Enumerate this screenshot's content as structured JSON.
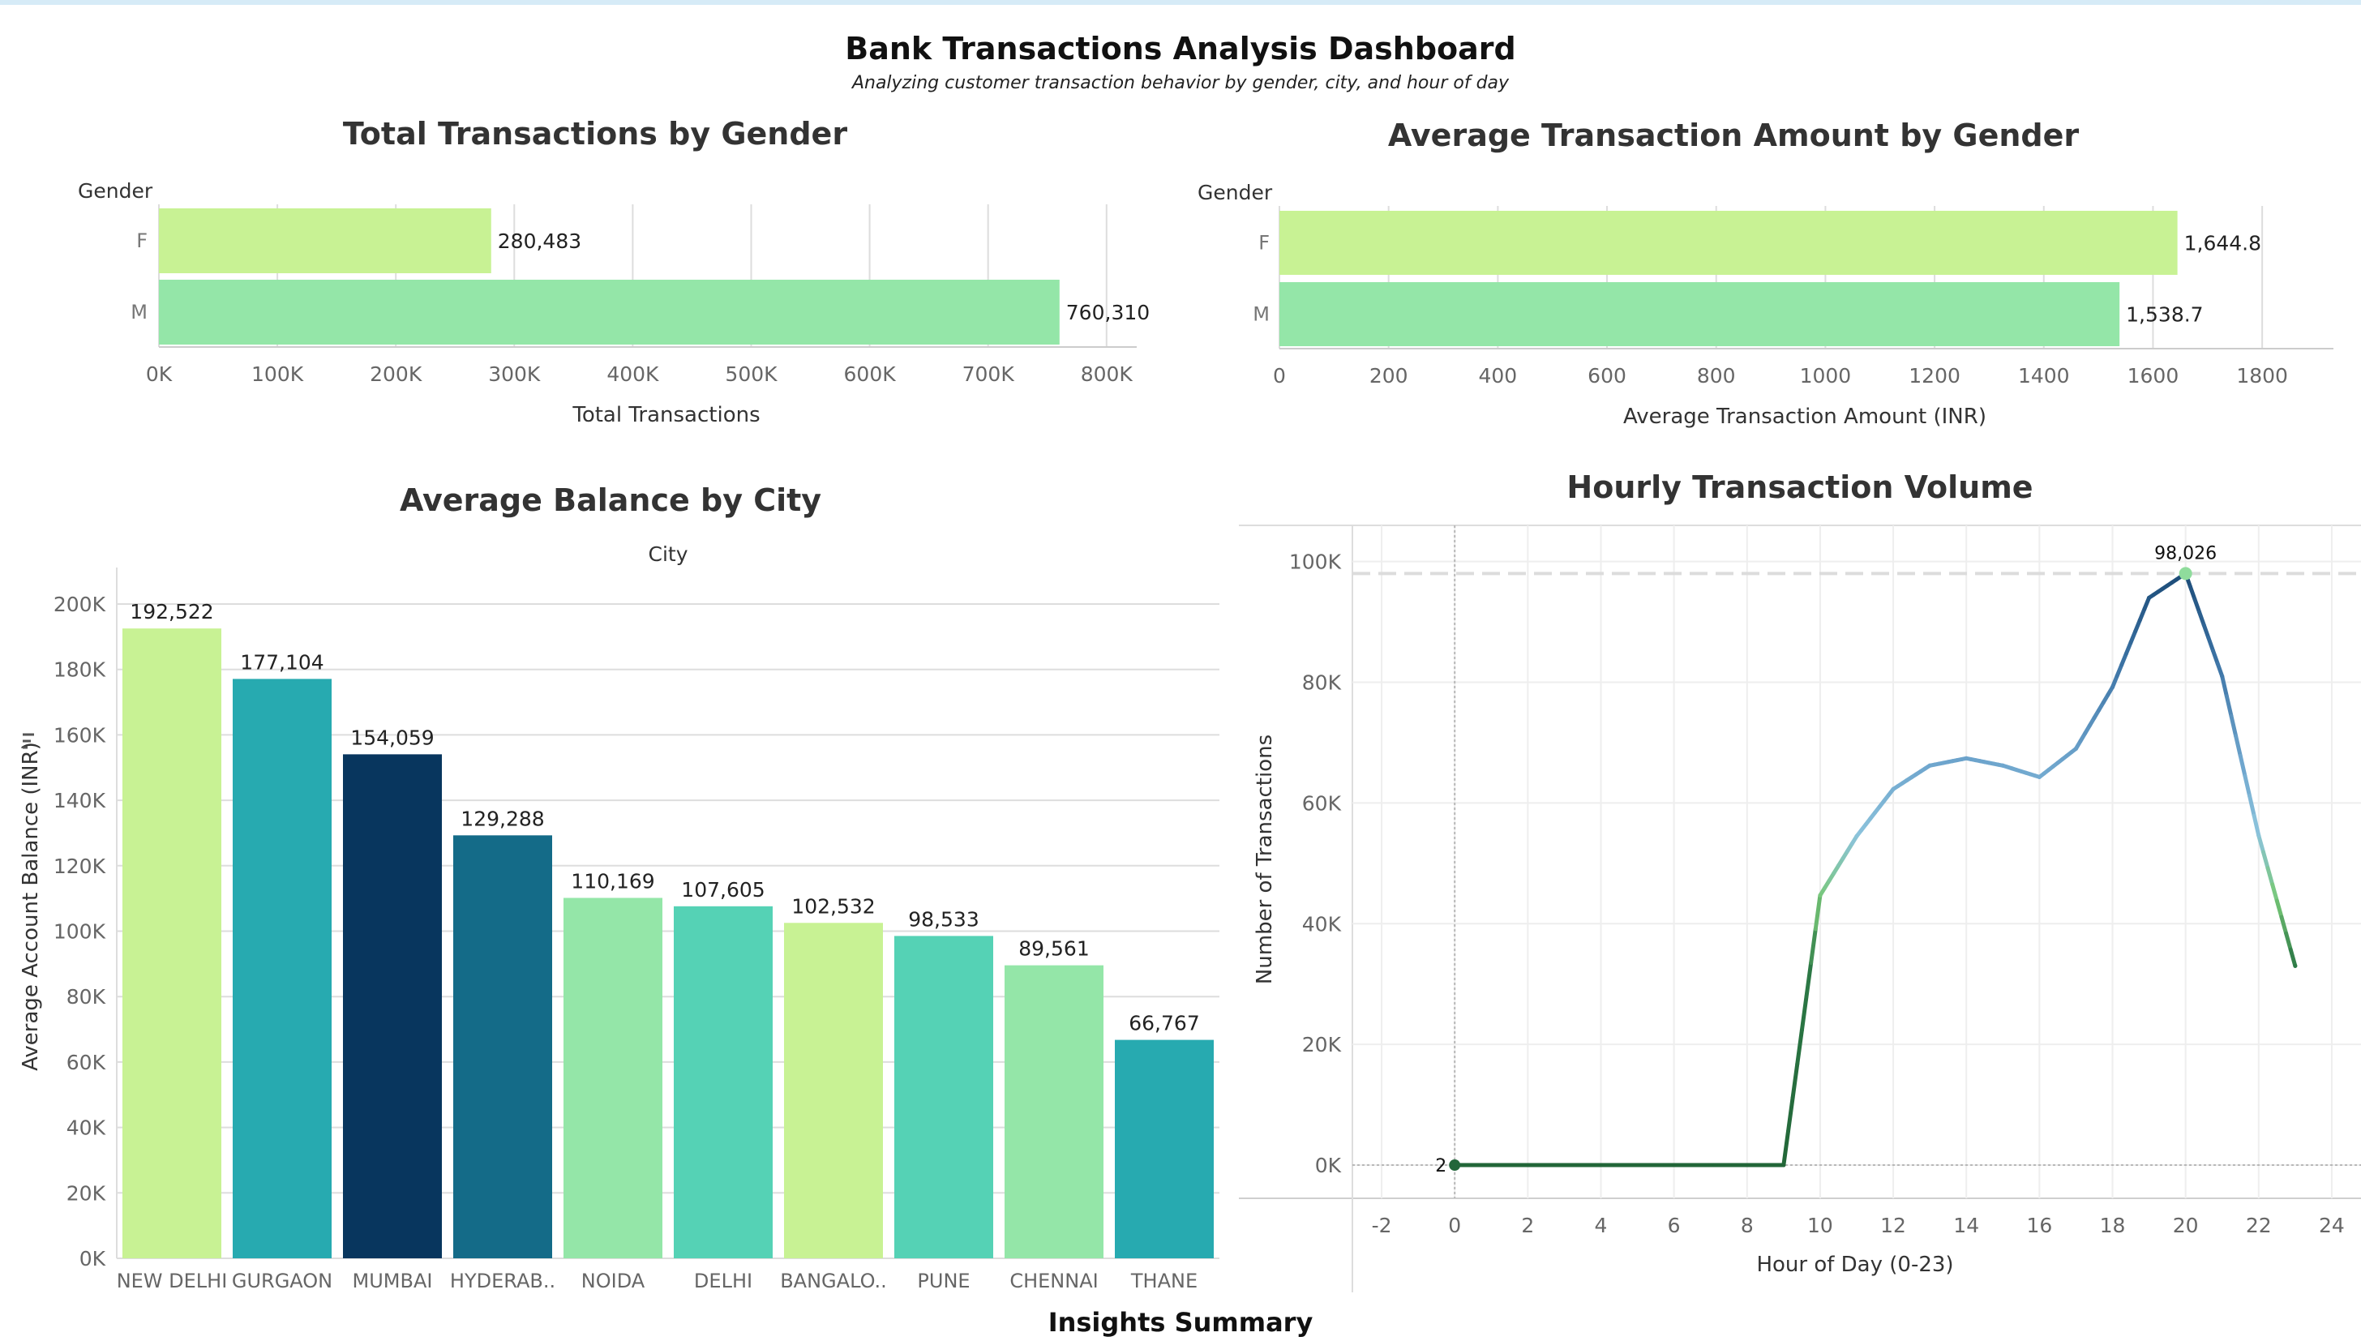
{
  "dashboard": {
    "title": "Bank Transactions Analysis Dashboard",
    "subtitle": "Analyzing customer transaction behavior by gender, city, and hour of day",
    "footer_title": "Insights Summary"
  },
  "chart_data": [
    {
      "type": "bar",
      "orientation": "horizontal",
      "title": "Total Transactions by Gender",
      "category_header": "Gender",
      "categories": [
        "F",
        "M"
      ],
      "values": [
        280483,
        760310
      ],
      "value_labels": [
        "280,483",
        "760,310"
      ],
      "xlabel": "Total Transactions",
      "xlim": [
        0,
        820000
      ],
      "ticks": [
        0,
        100000,
        200000,
        300000,
        400000,
        500000,
        600000,
        700000,
        800000
      ],
      "tick_labels": [
        "0K",
        "100K",
        "200K",
        "300K",
        "400K",
        "500K",
        "600K",
        "700K",
        "800K"
      ],
      "colors": [
        "#c8f294",
        "#94e6a8"
      ],
      "grid": true
    },
    {
      "type": "bar",
      "orientation": "horizontal",
      "title": "Average Transaction Amount by Gender",
      "category_header": "Gender",
      "categories": [
        "F",
        "M"
      ],
      "values": [
        1644.8,
        1538.7
      ],
      "value_labels": [
        "1,644.8",
        "1,538.7"
      ],
      "xlabel": "Average Transaction Amount (INR)",
      "xlim": [
        0,
        1880
      ],
      "ticks": [
        0,
        200,
        400,
        600,
        800,
        1000,
        1200,
        1400,
        1600,
        1800
      ],
      "tick_labels": [
        "0",
        "200",
        "400",
        "600",
        "800",
        "1000",
        "1200",
        "1400",
        "1600",
        "1800"
      ],
      "colors": [
        "#c8f294",
        "#94e6a8"
      ],
      "grid": true
    },
    {
      "type": "bar",
      "orientation": "vertical",
      "title": "Average Balance by City",
      "category_header": "City",
      "categories": [
        "NEW DELHI",
        "GURGAON",
        "MUMBAI",
        "HYDERAB..",
        "NOIDA",
        "DELHI",
        "BANGALO..",
        "PUNE",
        "CHENNAI",
        "THANE"
      ],
      "values": [
        192522,
        177104,
        154059,
        129288,
        110169,
        107605,
        102532,
        98533,
        89561,
        66767
      ],
      "value_labels": [
        "192,522",
        "177,104",
        "154,059",
        "129,288",
        "110,169",
        "107,605",
        "102,532",
        "98,533",
        "89,561",
        "66,767"
      ],
      "ylabel": "Average Account Balance (INR)",
      "ylim": [
        0,
        200000
      ],
      "ticks": [
        0,
        20000,
        40000,
        60000,
        80000,
        100000,
        120000,
        140000,
        160000,
        180000,
        200000
      ],
      "tick_labels": [
        "0K",
        "20K",
        "40K",
        "60K",
        "80K",
        "100K",
        "120K",
        "140K",
        "160K",
        "180K",
        "200K"
      ],
      "colors": [
        "#c8f294",
        "#27aab0",
        "#08365e",
        "#146b88",
        "#94e6a8",
        "#55d2b5",
        "#c8f294",
        "#55d2b5",
        "#94e6a8",
        "#27aab0"
      ],
      "grid": true
    },
    {
      "type": "line",
      "title": "Hourly Transaction Volume",
      "x": [
        0,
        1,
        2,
        3,
        4,
        5,
        6,
        7,
        8,
        9,
        10,
        11,
        12,
        13,
        14,
        15,
        16,
        17,
        18,
        19,
        20,
        21,
        22,
        23
      ],
      "y": [
        2,
        0,
        0,
        0,
        0,
        0,
        0,
        0,
        0,
        0,
        44700,
        54500,
        62300,
        66200,
        67400,
        66200,
        64300,
        69000,
        79200,
        94000,
        98026,
        81000,
        54600,
        33000
      ],
      "xlabel": "Hour of Day (0-23)",
      "ylabel": "Number of Transactions",
      "xlim": [
        -2.8,
        24.8
      ],
      "ylim": [
        -5500,
        106000
      ],
      "xticks": [
        -2,
        0,
        2,
        4,
        6,
        8,
        10,
        12,
        14,
        16,
        18,
        20,
        22,
        24
      ],
      "yticks": [
        0,
        20000,
        40000,
        60000,
        80000,
        100000
      ],
      "ytick_labels": [
        "0K",
        "20K",
        "40K",
        "60K",
        "80K",
        "100K"
      ],
      "annotations": [
        {
          "x": 20,
          "y": 98026,
          "label": "98,026"
        },
        {
          "x": 0,
          "y": 2,
          "label": "2"
        }
      ],
      "reference_line": 98026,
      "grid": true
    }
  ]
}
